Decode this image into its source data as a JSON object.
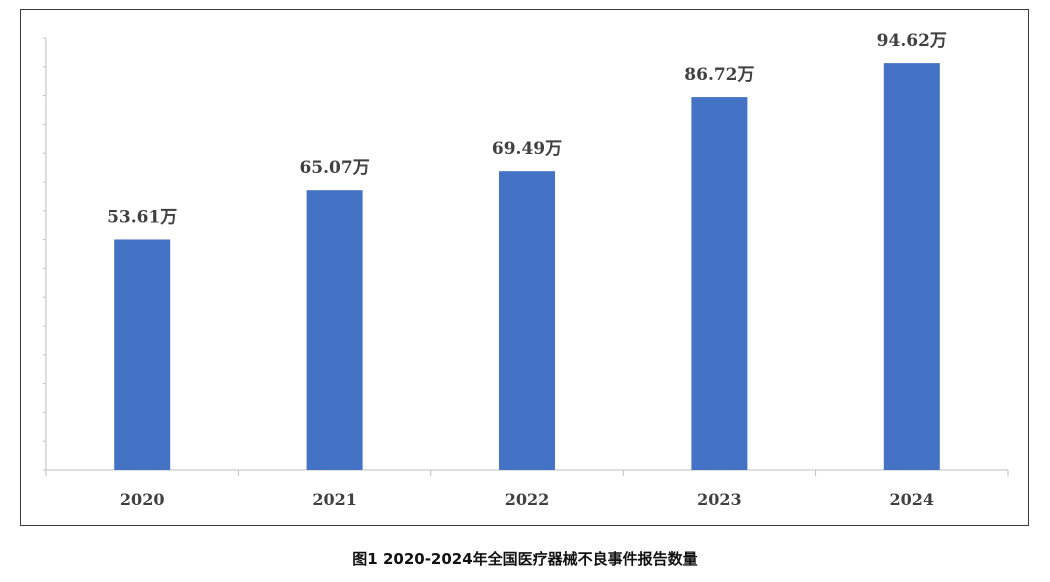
{
  "chart_data": {
    "type": "bar",
    "categories": [
      "2020",
      "2021",
      "2022",
      "2023",
      "2024"
    ],
    "values": [
      53.61,
      65.07,
      69.49,
      86.72,
      94.62
    ],
    "data_labels": [
      "53.61万",
      "65.07万",
      "69.49万",
      "86.72万",
      "94.62万"
    ],
    "bar_color": "#4472C4",
    "ylim": [
      0,
      100
    ],
    "grid": false,
    "legend": "none"
  },
  "caption": "图1 2020-2024年全国医疗器械不良事件报告数量"
}
